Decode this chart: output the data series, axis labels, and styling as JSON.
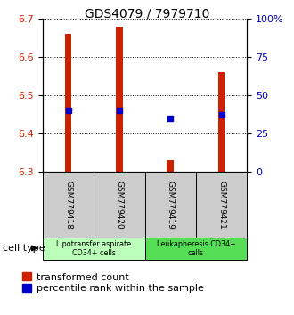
{
  "title": "GDS4079 / 7979710",
  "samples": [
    "GSM779418",
    "GSM779420",
    "GSM779419",
    "GSM779421"
  ],
  "bar_bottoms": [
    6.3,
    6.3,
    6.3,
    6.3
  ],
  "bar_tops": [
    6.66,
    6.68,
    6.33,
    6.56
  ],
  "percentile_values": [
    6.46,
    6.46,
    6.44,
    6.45
  ],
  "ylim_left": [
    6.3,
    6.7
  ],
  "ylim_right": [
    0,
    100
  ],
  "yticks_left": [
    6.3,
    6.4,
    6.5,
    6.6,
    6.7
  ],
  "yticks_right": [
    0,
    25,
    50,
    75,
    100
  ],
  "ytick_labels_right": [
    "0",
    "25",
    "50",
    "75",
    "100%"
  ],
  "bar_color": "#cc2200",
  "dot_color": "#0000cc",
  "cell_type_groups": [
    {
      "label": "Lipotransfer aspirate\nCD34+ cells",
      "color": "#bbffbb"
    },
    {
      "label": "Leukapheresis CD34+\ncells",
      "color": "#55dd55"
    }
  ],
  "legend_bar_label": "transformed count",
  "legend_dot_label": "percentile rank within the sample",
  "cell_type_label": "cell type",
  "ylabel_left_color": "#cc2200",
  "ylabel_right_color": "#0000bb",
  "tick_label_fontsize": 8,
  "title_fontsize": 10,
  "legend_fontsize": 8,
  "sample_box_color": "#cccccc"
}
